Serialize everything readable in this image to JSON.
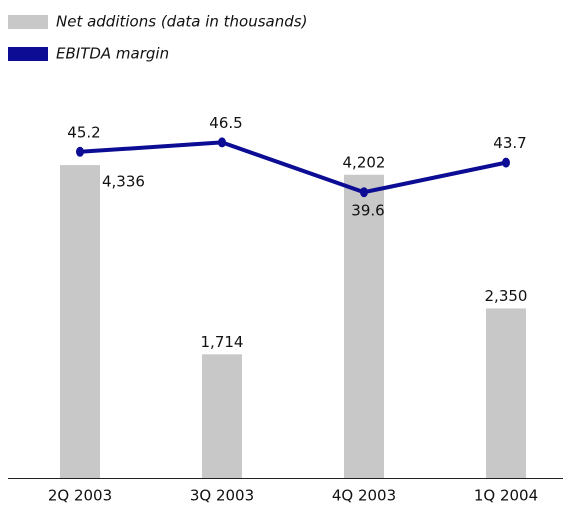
{
  "chart_data": {
    "type": "bar",
    "categories": [
      "2Q 2003",
      "3Q 2003",
      "4Q 2003",
      "1Q 2004"
    ],
    "series": [
      {
        "name": "Net additions (data in thousands)",
        "type": "bar",
        "color": "#c8c8c8",
        "values": [
          4336,
          1714,
          4202,
          2350
        ],
        "value_labels": [
          "4,336",
          "1,714",
          "4,202",
          "2,350"
        ]
      },
      {
        "name": "EBITDA margin",
        "type": "line",
        "axis": "y2",
        "color": "#0c0c94",
        "values": [
          45.2,
          46.5,
          39.6,
          43.7
        ]
      }
    ],
    "ylim": [
      0,
      6000
    ],
    "y2lim": [
      0,
      60
    ]
  }
}
